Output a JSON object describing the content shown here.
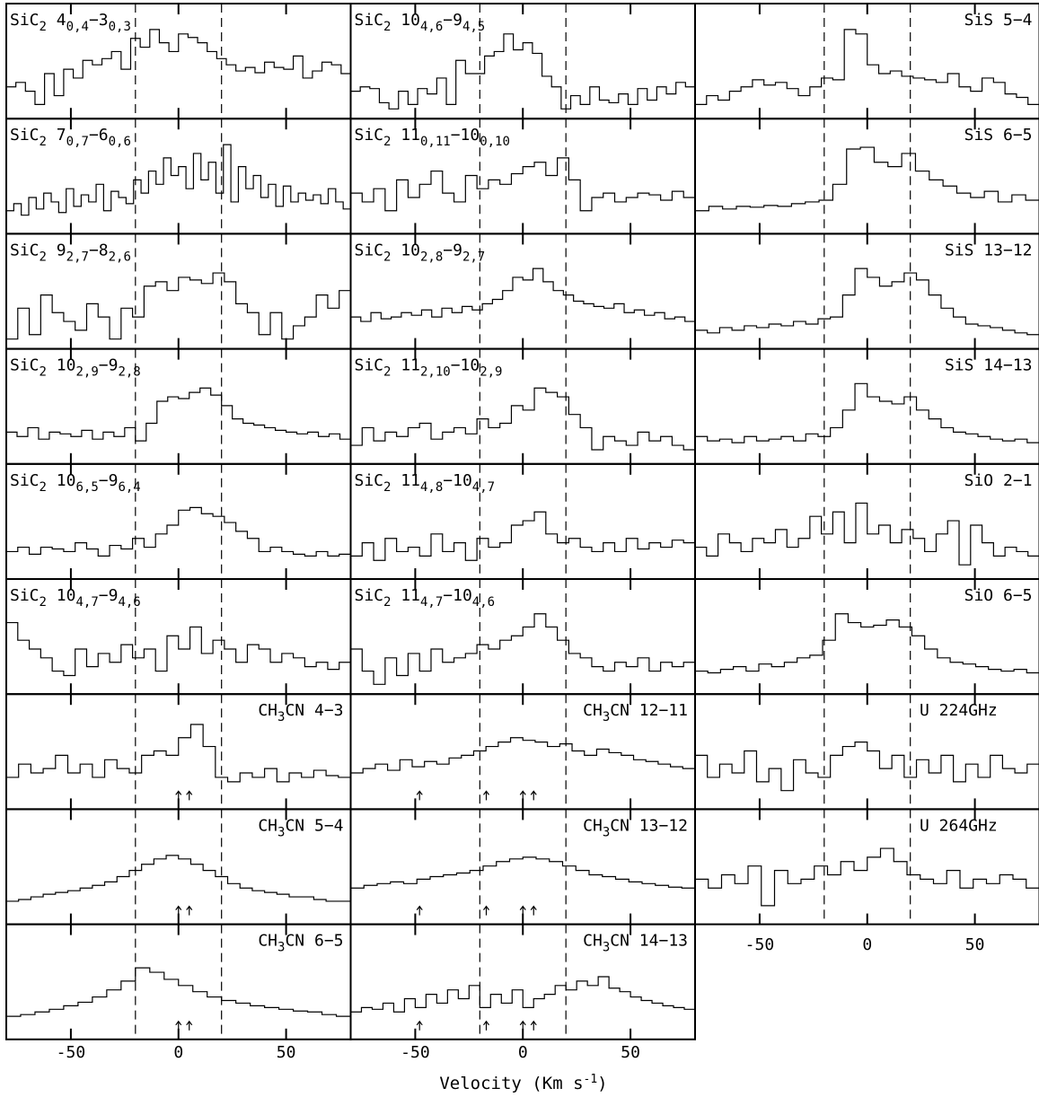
{
  "figure": {
    "xlabel": "Velocity (Km s",
    "xlabel_sup": "-1",
    "xlabel_end": ")",
    "x_tick_labels": [
      "-50",
      "0",
      "50"
    ]
  },
  "chart_data": {
    "type": "line",
    "style": "histogram-step",
    "xlim": [
      -80,
      80
    ],
    "x_ticks": [
      -50,
      0,
      50
    ],
    "dashed_lines_x": [
      -20,
      20
    ],
    "panels": [
      {
        "id": "sic2-404-303",
        "label": "SiC",
        "label_sub": "2",
        "line": "4",
        "q1": "0,4",
        "mid": "−3",
        "q2": "0,3",
        "align": "left",
        "arrows": [],
        "values": [
          0.3,
          0.35,
          0.25,
          0.1,
          0.45,
          0.2,
          0.5,
          0.4,
          0.6,
          0.55,
          0.62,
          0.7,
          0.5,
          0.85,
          0.75,
          0.95,
          0.8,
          0.7,
          0.9,
          0.86,
          0.8,
          0.7,
          0.62,
          0.55,
          0.48,
          0.52,
          0.46,
          0.58,
          0.52,
          0.5,
          0.65,
          0.4,
          0.48,
          0.58,
          0.55,
          0.45
        ]
      },
      {
        "id": "sic2-1046-945",
        "label": "SiC",
        "label_sub": "2",
        "line": "10",
        "q1": "4,6",
        "mid": "−9",
        "q2": "4,5",
        "align": "left",
        "arrows": [],
        "values": [
          0.25,
          0.3,
          0.28,
          0.12,
          0.05,
          0.25,
          0.1,
          0.28,
          0.22,
          0.4,
          0.1,
          0.6,
          0.45,
          0.45,
          0.65,
          0.7,
          0.9,
          0.72,
          0.8,
          0.68,
          0.42,
          0.3,
          0.05,
          0.2,
          0.1,
          0.3,
          0.15,
          0.12,
          0.22,
          0.1,
          0.28,
          0.15,
          0.3,
          0.22,
          0.35,
          0.3
        ]
      },
      {
        "id": "sis-5-4",
        "label": "SiS",
        "label_sub": "",
        "line": "5−4",
        "q1": "",
        "mid": "",
        "q2": "",
        "align": "right",
        "arrows": [],
        "values": [
          0.1,
          0.2,
          0.15,
          0.25,
          0.3,
          0.38,
          0.32,
          0.35,
          0.28,
          0.2,
          0.3,
          0.4,
          0.38,
          0.95,
          0.9,
          0.55,
          0.45,
          0.48,
          0.42,
          0.4,
          0.38,
          0.35,
          0.45,
          0.3,
          0.25,
          0.4,
          0.35,
          0.22,
          0.18,
          0.1
        ]
      },
      {
        "id": "sic2-707-606",
        "label": "SiC",
        "label_sub": "2",
        "line": "7",
        "q1": "0,7",
        "mid": "−6",
        "q2": "0,6",
        "align": "left",
        "arrows": [],
        "values": [
          0.2,
          0.28,
          0.15,
          0.35,
          0.22,
          0.4,
          0.3,
          0.18,
          0.45,
          0.25,
          0.38,
          0.3,
          0.5,
          0.2,
          0.42,
          0.35,
          0.28,
          0.55,
          0.4,
          0.65,
          0.5,
          0.8,
          0.6,
          0.7,
          0.45,
          0.85,
          0.55,
          0.75,
          0.4,
          0.95,
          0.3,
          0.7,
          0.45,
          0.6,
          0.35,
          0.5,
          0.25,
          0.48,
          0.3,
          0.4,
          0.32,
          0.38,
          0.28,
          0.45,
          0.3,
          0.22
        ]
      },
      {
        "id": "sic2-11011-10010",
        "label": "SiC",
        "label_sub": "2",
        "line": "11",
        "q1": "0,11",
        "mid": "−10",
        "q2": "0,10",
        "align": "left",
        "arrows": [],
        "values": [
          0.4,
          0.3,
          0.45,
          0.2,
          0.55,
          0.35,
          0.5,
          0.65,
          0.4,
          0.3,
          0.6,
          0.45,
          0.55,
          0.5,
          0.62,
          0.7,
          0.75,
          0.6,
          0.8,
          0.55,
          0.2,
          0.35,
          0.4,
          0.3,
          0.35,
          0.4,
          0.38,
          0.32,
          0.42,
          0.35
        ]
      },
      {
        "id": "sis-6-5",
        "label": "SiS",
        "label_sub": "",
        "line": "6−5",
        "q1": "",
        "mid": "",
        "q2": "",
        "align": "right",
        "arrows": [],
        "values": [
          0.2,
          0.25,
          0.22,
          0.25,
          0.24,
          0.26,
          0.25,
          0.28,
          0.3,
          0.32,
          0.5,
          0.9,
          0.92,
          0.75,
          0.7,
          0.85,
          0.65,
          0.55,
          0.48,
          0.4,
          0.35,
          0.42,
          0.3,
          0.38,
          0.32
        ]
      },
      {
        "id": "sic2-927-826",
        "label": "SiC",
        "label_sub": "2",
        "line": "9",
        "q1": "2,7",
        "mid": "−8",
        "q2": "2,6",
        "align": "left",
        "arrows": [],
        "values": [
          0.05,
          0.4,
          0.1,
          0.55,
          0.35,
          0.25,
          0.15,
          0.45,
          0.3,
          0.05,
          0.4,
          0.3,
          0.65,
          0.7,
          0.6,
          0.75,
          0.72,
          0.68,
          0.8,
          0.7,
          0.45,
          0.35,
          0.1,
          0.35,
          0.05,
          0.2,
          0.3,
          0.55,
          0.4,
          0.6
        ]
      },
      {
        "id": "sic2-1028-927",
        "label": "SiC",
        "label_sub": "2",
        "line": "10",
        "q1": "2,8",
        "mid": "−9",
        "q2": "2,7",
        "align": "left",
        "arrows": [],
        "values": [
          0.3,
          0.25,
          0.35,
          0.28,
          0.3,
          0.35,
          0.32,
          0.38,
          0.3,
          0.4,
          0.35,
          0.42,
          0.38,
          0.45,
          0.5,
          0.6,
          0.75,
          0.72,
          0.85,
          0.7,
          0.6,
          0.55,
          0.48,
          0.45,
          0.42,
          0.4,
          0.45,
          0.35,
          0.38,
          0.32,
          0.35,
          0.28,
          0.3,
          0.25
        ]
      },
      {
        "id": "sis-13-12",
        "label": "SiS",
        "label_sub": "",
        "line": "13−12",
        "q1": "",
        "mid": "",
        "q2": "",
        "align": "right",
        "arrows": [],
        "values": [
          0.15,
          0.12,
          0.18,
          0.15,
          0.2,
          0.18,
          0.22,
          0.2,
          0.25,
          0.22,
          0.28,
          0.3,
          0.55,
          0.85,
          0.75,
          0.65,
          0.7,
          0.8,
          0.72,
          0.55,
          0.4,
          0.3,
          0.22,
          0.2,
          0.18,
          0.15,
          0.12,
          0.1
        ]
      },
      {
        "id": "sic2-1029-928",
        "label": "SiC",
        "label_sub": "2",
        "line": "10",
        "q1": "2,9",
        "mid": "−9",
        "q2": "2,8",
        "align": "left",
        "arrows": [],
        "values": [
          0.3,
          0.25,
          0.35,
          0.22,
          0.3,
          0.28,
          0.25,
          0.32,
          0.22,
          0.3,
          0.25,
          0.35,
          0.2,
          0.4,
          0.65,
          0.7,
          0.68,
          0.75,
          0.8,
          0.72,
          0.6,
          0.45,
          0.4,
          0.38,
          0.35,
          0.32,
          0.3,
          0.28,
          0.3,
          0.25,
          0.28,
          0.22
        ]
      },
      {
        "id": "sic2-11210-1029",
        "label": "SiC",
        "label_sub": "2",
        "line": "11",
        "q1": "2,10",
        "mid": "−10",
        "q2": "2,9",
        "align": "left",
        "arrows": [],
        "values": [
          0.15,
          0.35,
          0.2,
          0.3,
          0.25,
          0.35,
          0.4,
          0.22,
          0.3,
          0.35,
          0.28,
          0.45,
          0.35,
          0.4,
          0.6,
          0.55,
          0.8,
          0.75,
          0.7,
          0.5,
          0.35,
          0.1,
          0.25,
          0.2,
          0.15,
          0.3,
          0.2,
          0.25,
          0.15,
          0.1
        ]
      },
      {
        "id": "sis-14-13",
        "label": "SiS",
        "label_sub": "",
        "line": "14−13",
        "q1": "",
        "mid": "",
        "q2": "",
        "align": "right",
        "arrows": [],
        "values": [
          0.25,
          0.2,
          0.22,
          0.18,
          0.25,
          0.2,
          0.22,
          0.25,
          0.2,
          0.28,
          0.25,
          0.35,
          0.55,
          0.85,
          0.7,
          0.65,
          0.62,
          0.7,
          0.55,
          0.45,
          0.35,
          0.3,
          0.28,
          0.25,
          0.22,
          0.2,
          0.22,
          0.18
        ]
      },
      {
        "id": "sic2-1065-964",
        "label": "SiC",
        "label_sub": "2",
        "line": "10",
        "q1": "6,5",
        "mid": "−9",
        "q2": "6,4",
        "align": "left",
        "arrows": [],
        "values": [
          0.25,
          0.3,
          0.22,
          0.3,
          0.28,
          0.25,
          0.35,
          0.28,
          0.2,
          0.32,
          0.28,
          0.4,
          0.3,
          0.45,
          0.55,
          0.72,
          0.75,
          0.68,
          0.65,
          0.58,
          0.48,
          0.4,
          0.25,
          0.3,
          0.25,
          0.22,
          0.2,
          0.25,
          0.2,
          0.22
        ]
      },
      {
        "id": "sic2-1148-1047",
        "label": "SiC",
        "label_sub": "2",
        "line": "11",
        "q1": "4,8",
        "mid": "−10",
        "q2": "4,7",
        "align": "left",
        "arrows": [],
        "values": [
          0.2,
          0.35,
          0.15,
          0.4,
          0.25,
          0.3,
          0.2,
          0.45,
          0.25,
          0.35,
          0.15,
          0.4,
          0.3,
          0.35,
          0.55,
          0.6,
          0.7,
          0.45,
          0.35,
          0.4,
          0.3,
          0.25,
          0.35,
          0.25,
          0.4,
          0.28,
          0.35,
          0.3,
          0.38,
          0.35
        ]
      },
      {
        "id": "sio-2-1",
        "label": "SiO",
        "label_sub": "",
        "line": "2−1",
        "q1": "",
        "mid": "",
        "q2": "",
        "align": "right",
        "arrows": [],
        "values": [
          0.3,
          0.2,
          0.45,
          0.35,
          0.25,
          0.4,
          0.35,
          0.5,
          0.3,
          0.4,
          0.65,
          0.45,
          0.7,
          0.35,
          0.8,
          0.45,
          0.55,
          0.35,
          0.5,
          0.4,
          0.25,
          0.45,
          0.6,
          0.1,
          0.55,
          0.35,
          0.2,
          0.3,
          0.25,
          0.2
        ]
      },
      {
        "id": "sic2-1047-946",
        "label": "SiC",
        "label_sub": "2",
        "line": "10",
        "q1": "4,7",
        "mid": "−9",
        "q2": "4,6",
        "align": "left",
        "arrows": [],
        "values": [
          0.75,
          0.55,
          0.45,
          0.35,
          0.2,
          0.15,
          0.45,
          0.25,
          0.4,
          0.3,
          0.5,
          0.35,
          0.45,
          0.2,
          0.6,
          0.45,
          0.7,
          0.4,
          0.55,
          0.45,
          0.3,
          0.5,
          0.45,
          0.3,
          0.4,
          0.35,
          0.25,
          0.3,
          0.22,
          0.3
        ]
      },
      {
        "id": "sic2-1147-1046",
        "label": "SiC",
        "label_sub": "2",
        "line": "11",
        "q1": "4,7",
        "mid": "−10",
        "q2": "4,6",
        "align": "left",
        "arrows": [],
        "values": [
          0.45,
          0.2,
          0.05,
          0.35,
          0.15,
          0.4,
          0.2,
          0.45,
          0.3,
          0.35,
          0.4,
          0.5,
          0.45,
          0.55,
          0.6,
          0.7,
          0.85,
          0.7,
          0.55,
          0.4,
          0.35,
          0.25,
          0.2,
          0.3,
          0.25,
          0.35,
          0.2,
          0.3,
          0.25,
          0.3
        ]
      },
      {
        "id": "sio-6-5",
        "label": "SiO",
        "label_sub": "",
        "line": "6−5",
        "q1": "",
        "mid": "",
        "q2": "",
        "align": "right",
        "arrows": [],
        "values": [
          0.2,
          0.18,
          0.22,
          0.25,
          0.2,
          0.28,
          0.25,
          0.3,
          0.35,
          0.38,
          0.55,
          0.85,
          0.75,
          0.7,
          0.72,
          0.78,
          0.7,
          0.6,
          0.45,
          0.35,
          0.3,
          0.28,
          0.25,
          0.22,
          0.2,
          0.22,
          0.18
        ]
      },
      {
        "id": "ch3cn-4-3",
        "label": "CH",
        "label_sub": "3",
        "line": "CN 4−3",
        "q1": "",
        "mid": "",
        "q2": "",
        "align": "right",
        "arrows": [
          0,
          5
        ],
        "values": [
          0.3,
          0.45,
          0.35,
          0.4,
          0.55,
          0.35,
          0.45,
          0.3,
          0.5,
          0.4,
          0.35,
          0.55,
          0.6,
          0.55,
          0.75,
          0.9,
          0.65,
          0.3,
          0.25,
          0.35,
          0.3,
          0.4,
          0.25,
          0.35,
          0.3,
          0.38,
          0.32,
          0.3
        ]
      },
      {
        "id": "ch3cn-12-11",
        "label": "CH",
        "label_sub": "3",
        "line": "CN 12−11",
        "q1": "",
        "mid": "",
        "q2": "",
        "align": "right",
        "arrows": [
          -48,
          -17,
          0,
          5
        ],
        "values": [
          0.35,
          0.4,
          0.45,
          0.38,
          0.5,
          0.42,
          0.48,
          0.45,
          0.52,
          0.55,
          0.6,
          0.65,
          0.7,
          0.75,
          0.72,
          0.7,
          0.65,
          0.68,
          0.6,
          0.55,
          0.62,
          0.58,
          0.55,
          0.5,
          0.48,
          0.45,
          0.42,
          0.4
        ]
      },
      {
        "id": "u-224ghz",
        "label": "U",
        "label_sub": "",
        "line": "224GHz",
        "q1": "",
        "mid": "",
        "q2": "",
        "align": "left",
        "arrows": [],
        "values": [
          0.55,
          0.3,
          0.45,
          0.35,
          0.6,
          0.25,
          0.4,
          0.15,
          0.5,
          0.35,
          0.3,
          0.55,
          0.65,
          0.7,
          0.6,
          0.4,
          0.55,
          0.3,
          0.5,
          0.35,
          0.55,
          0.25,
          0.45,
          0.3,
          0.55,
          0.4,
          0.35,
          0.45
        ]
      },
      {
        "id": "ch3cn-5-4",
        "label": "CH",
        "label_sub": "3",
        "line": "CN 5−4",
        "q1": "",
        "mid": "",
        "q2": "",
        "align": "right",
        "arrows": [
          0,
          5
        ],
        "values": [
          0.2,
          0.22,
          0.25,
          0.28,
          0.3,
          0.32,
          0.35,
          0.38,
          0.42,
          0.48,
          0.55,
          0.62,
          0.68,
          0.72,
          0.68,
          0.62,
          0.55,
          0.48,
          0.4,
          0.35,
          0.32,
          0.3,
          0.28,
          0.25,
          0.25,
          0.22,
          0.2,
          0.2
        ]
      },
      {
        "id": "ch3cn-13-12",
        "label": "CH",
        "label_sub": "3",
        "line": "CN 13−12",
        "q1": "",
        "mid": "",
        "q2": "",
        "align": "right",
        "arrows": [
          -48,
          -17,
          0,
          5
        ],
        "values": [
          0.35,
          0.38,
          0.4,
          0.42,
          0.4,
          0.45,
          0.48,
          0.5,
          0.52,
          0.55,
          0.6,
          0.65,
          0.68,
          0.7,
          0.68,
          0.65,
          0.6,
          0.55,
          0.5,
          0.48,
          0.45,
          0.42,
          0.4,
          0.38,
          0.36,
          0.35
        ]
      },
      {
        "id": "u-264ghz",
        "label": "U",
        "label_sub": "",
        "line": "264GHz",
        "q1": "",
        "mid": "",
        "q2": "",
        "align": "left",
        "arrows": [],
        "values": [
          0.45,
          0.35,
          0.5,
          0.4,
          0.6,
          0.15,
          0.55,
          0.4,
          0.45,
          0.6,
          0.5,
          0.65,
          0.55,
          0.7,
          0.8,
          0.65,
          0.5,
          0.45,
          0.4,
          0.55,
          0.35,
          0.45,
          0.4,
          0.5,
          0.45,
          0.35
        ]
      },
      {
        "id": "ch3cn-6-5",
        "label": "CH",
        "label_sub": "3",
        "line": "CN 6−5",
        "q1": "",
        "mid": "",
        "q2": "",
        "align": "right",
        "arrows": [
          0,
          5
        ],
        "values": [
          0.2,
          0.22,
          0.25,
          0.28,
          0.32,
          0.36,
          0.42,
          0.5,
          0.6,
          0.75,
          0.7,
          0.62,
          0.55,
          0.48,
          0.42,
          0.38,
          0.35,
          0.32,
          0.3,
          0.28,
          0.26,
          0.25,
          0.22,
          0.2
        ]
      },
      {
        "id": "ch3cn-14-13",
        "label": "CH",
        "label_sub": "3",
        "line": "CN 14−13",
        "q1": "",
        "mid": "",
        "q2": "",
        "align": "right",
        "arrows": [
          -48,
          -17,
          0,
          5
        ],
        "values": [
          0.25,
          0.3,
          0.28,
          0.35,
          0.25,
          0.4,
          0.3,
          0.45,
          0.35,
          0.5,
          0.4,
          0.55,
          0.3,
          0.45,
          0.35,
          0.5,
          0.3,
          0.4,
          0.45,
          0.55,
          0.5,
          0.6,
          0.55,
          0.65,
          0.52,
          0.48,
          0.42,
          0.38,
          0.35,
          0.32,
          0.3,
          0.28
        ]
      }
    ]
  }
}
